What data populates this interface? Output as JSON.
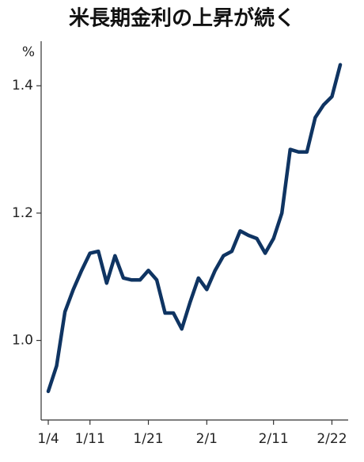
{
  "chart_data": {
    "type": "line",
    "title": "米長期金利の上昇が続く",
    "unit": "%",
    "categories": [
      "1/4",
      null,
      null,
      null,
      null,
      "1/11",
      null,
      null,
      null,
      null,
      null,
      null,
      "1/21",
      null,
      null,
      null,
      null,
      null,
      null,
      "2/1",
      null,
      null,
      null,
      null,
      null,
      null,
      null,
      "2/11",
      null,
      null,
      null,
      null,
      null,
      null,
      "2/22",
      null
    ],
    "values": [
      0.92,
      0.96,
      1.045,
      1.08,
      1.11,
      1.137,
      1.14,
      1.09,
      1.133,
      1.098,
      1.095,
      1.095,
      1.11,
      1.095,
      1.043,
      1.043,
      1.018,
      1.06,
      1.098,
      1.08,
      1.11,
      1.133,
      1.14,
      1.172,
      1.165,
      1.16,
      1.137,
      1.16,
      1.2,
      1.3,
      1.296,
      1.296,
      1.35,
      1.37,
      1.383,
      1.433
    ],
    "color": "#0f3462",
    "ylim": [
      0.875,
      1.47
    ],
    "yticks": [
      {
        "value": 1,
        "label": "1.0"
      },
      1.2,
      1.4
    ]
  }
}
